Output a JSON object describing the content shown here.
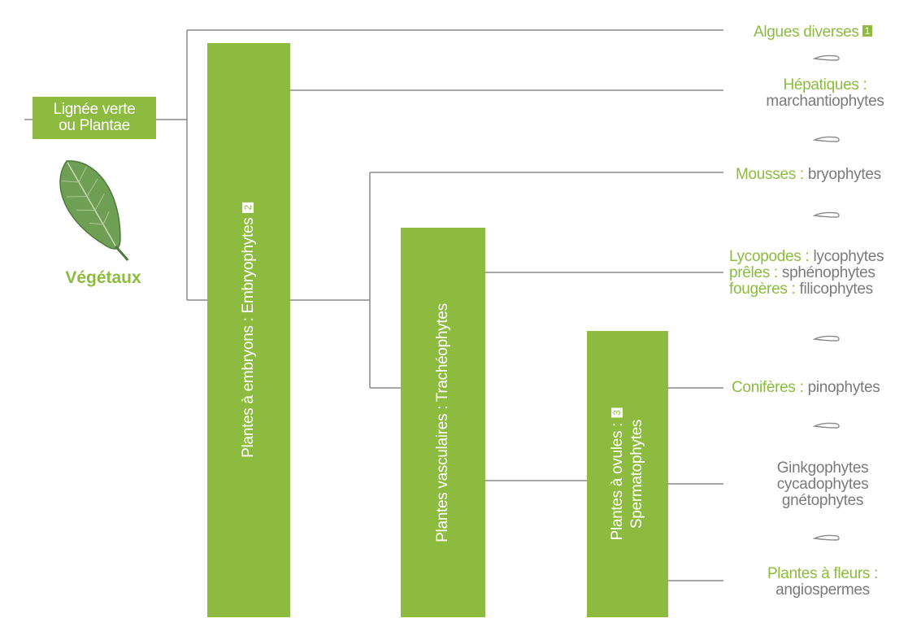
{
  "root": {
    "line1": "Lignée verte",
    "line2": "ou Plantae",
    "caption": "Végétaux",
    "icon": "leaf-icon"
  },
  "clades": {
    "embryophytes": {
      "label": "Plantes à embryons : Embryophytes",
      "badge": "2"
    },
    "tracheophytes": {
      "label": "Plantes vasculaires : Trachéophytes"
    },
    "spermatophytes": {
      "line1": "Plantes à ovules :",
      "line2": "Spermatophytes",
      "badge": "3"
    }
  },
  "leaves": {
    "algues": {
      "name": "Algues diverses",
      "badge": "1"
    },
    "hepatiques": {
      "name": "Hépatiques :",
      "sci": "marchantiophytes"
    },
    "mousses": {
      "name": "Mousses :",
      "sci": "bryophytes"
    },
    "lycopodes": {
      "name": "Lycopodes :",
      "sci": "lycophytes"
    },
    "preles": {
      "name": "prêles :",
      "sci": "sphénophytes"
    },
    "fougeres": {
      "name": "fougères :",
      "sci": "filicophytes"
    },
    "coniferes": {
      "name": "Conifères :",
      "sci": "pinophytes"
    },
    "gymno": {
      "line1": "Ginkgophytes",
      "line2": "cycadophytes",
      "line3": "gnétophytes"
    },
    "fleurs": {
      "name": "Plantes à fleurs :",
      "sci": "angiospermes"
    }
  },
  "colors": {
    "green": "#8cbb3f",
    "line": "#8a8a8a",
    "text_gray": "#7a7a7a"
  },
  "separator_icon": "squiggle-separator-icon"
}
